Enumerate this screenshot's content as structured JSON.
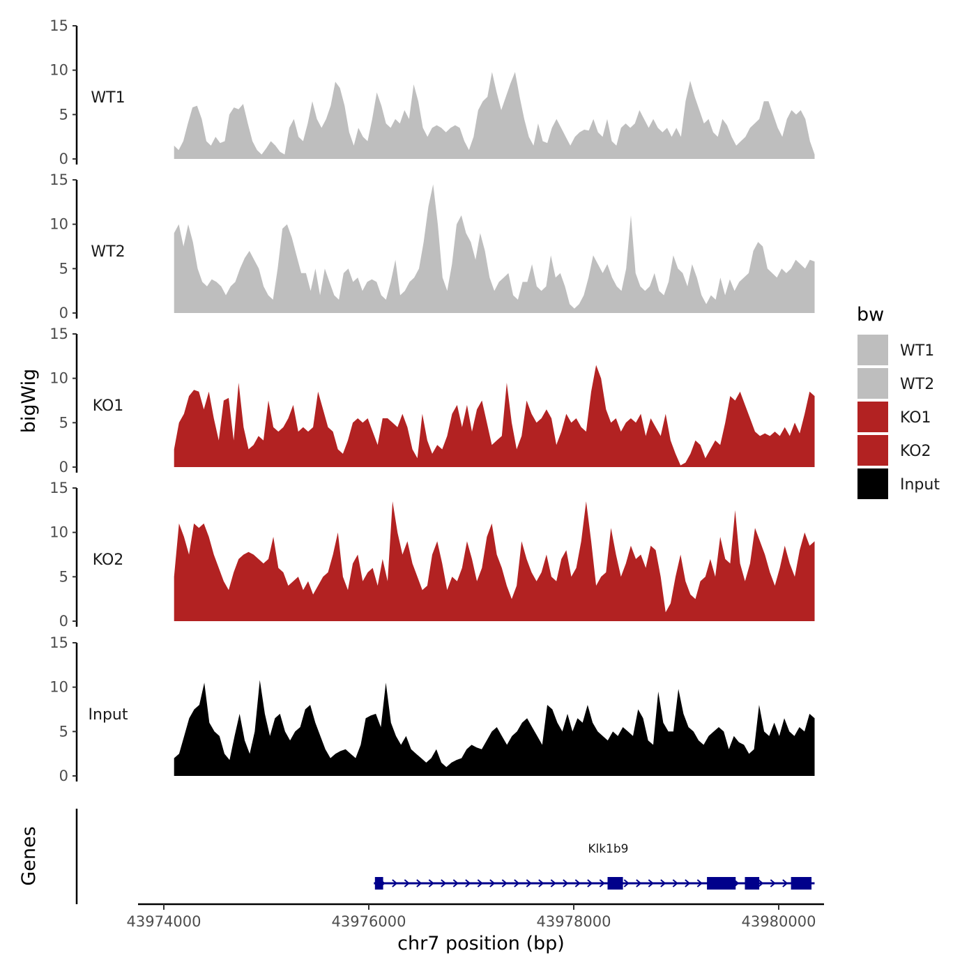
{
  "chart_data": {
    "type": "area",
    "layout": "stacked genome-browser tracks",
    "title": "",
    "ylabel": "bigWig",
    "genes_label": "Genes",
    "xlabel": "chr7 position (bp)",
    "xlim": [
      43973600,
      43980850
    ],
    "ylim": [
      0,
      15
    ],
    "x_ticks": [
      43974000,
      43976000,
      43978000,
      43980000
    ],
    "x_tick_labels": [
      "43974000",
      "43976000",
      "43978000",
      "43980000"
    ],
    "y_ticks": [
      0,
      5,
      10,
      15
    ],
    "y_tick_labels": [
      "0",
      "5",
      "10",
      "15"
    ],
    "x_start": 43974100,
    "x_end": 43980350,
    "legend": {
      "title": "bw",
      "placement": "right",
      "entries": [
        {
          "label": "WT1",
          "color": "#bebebe"
        },
        {
          "label": "WT2",
          "color": "#bebebe"
        },
        {
          "label": "KO1",
          "color": "#b22222"
        },
        {
          "label": "KO2",
          "color": "#b22222"
        },
        {
          "label": "Input",
          "color": "#000000"
        }
      ]
    },
    "series": [
      {
        "name": "WT1",
        "color": "#bebebe",
        "values": [
          1.5,
          1.0,
          2.0,
          4.0,
          5.8,
          6.0,
          4.5,
          2.0,
          1.5,
          2.5,
          1.8,
          2.0,
          5.0,
          5.8,
          5.6,
          6.2,
          4.0,
          2.0,
          1.0,
          0.5,
          1.2,
          2.0,
          1.5,
          0.8,
          0.5,
          3.5,
          4.5,
          2.5,
          2.0,
          4.0,
          6.5,
          4.5,
          3.5,
          4.5,
          6.0,
          8.7,
          8.0,
          6.0,
          3.0,
          1.5,
          3.5,
          2.5,
          2.0,
          4.5,
          7.5,
          6.0,
          4.0,
          3.5,
          4.5,
          4.0,
          5.5,
          4.5,
          8.4,
          6.5,
          3.5,
          2.5,
          3.5,
          3.8,
          3.5,
          3.0,
          3.5,
          3.8,
          3.5,
          2.0,
          1.0,
          2.5,
          5.5,
          6.5,
          7.0,
          9.8,
          7.5,
          5.5,
          7.0,
          8.5,
          9.8,
          7.0,
          4.5,
          2.5,
          1.5,
          4.0,
          2.0,
          1.8,
          3.5,
          4.5,
          3.5,
          2.5,
          1.5,
          2.5,
          3.0,
          3.3,
          3.2,
          4.5,
          3.0,
          2.5,
          4.5,
          2.0,
          1.5,
          3.5,
          4.0,
          3.5,
          4.0,
          5.5,
          4.5,
          3.5,
          4.5,
          3.5,
          3.0,
          3.5,
          2.5,
          3.5,
          2.5,
          6.5,
          8.8,
          7.0,
          5.5,
          4.0,
          4.5,
          3.0,
          2.5,
          4.5,
          3.8,
          2.5,
          1.5,
          2.0,
          2.5,
          3.5,
          4.0,
          4.5,
          6.5,
          6.5,
          5.0,
          3.5,
          2.5,
          4.5,
          5.5,
          5.0,
          5.5,
          4.5,
          2.0,
          0.5
        ]
      },
      {
        "name": "WT2",
        "color": "#bebebe",
        "values": [
          9.0,
          10.0,
          7.5,
          10.0,
          8.0,
          5.0,
          3.5,
          3.0,
          3.8,
          3.5,
          3.0,
          2.0,
          3.0,
          3.5,
          5.0,
          6.2,
          7.0,
          6.0,
          5.0,
          3.0,
          2.0,
          1.5,
          5.0,
          9.5,
          10.0,
          8.5,
          6.5,
          4.5,
          4.5,
          2.5,
          5.0,
          2.0,
          5.0,
          3.5,
          2.0,
          1.5,
          4.5,
          5.0,
          3.5,
          4.0,
          2.5,
          3.5,
          3.8,
          3.5,
          2.0,
          1.5,
          3.5,
          6.0,
          2.0,
          2.5,
          3.5,
          4.0,
          5.0,
          8.0,
          12.0,
          14.5,
          10.0,
          4.0,
          2.5,
          5.5,
          10.0,
          11.0,
          9.0,
          8.0,
          6.0,
          9.0,
          7.0,
          4.0,
          2.5,
          3.5,
          4.0,
          4.5,
          2.0,
          1.5,
          3.5,
          3.5,
          5.5,
          3.0,
          2.5,
          3.0,
          6.5,
          4.0,
          4.5,
          3.0,
          1.0,
          0.5,
          1.0,
          2.0,
          4.0,
          6.5,
          5.5,
          4.5,
          5.5,
          4.0,
          3.0,
          2.5,
          5.0,
          11.0,
          4.5,
          3.0,
          2.5,
          3.0,
          4.5,
          2.5,
          2.0,
          3.5,
          6.5,
          5.0,
          4.5,
          3.0,
          5.5,
          4.0,
          2.0,
          1.0,
          2.0,
          1.5,
          4.0,
          2.0,
          3.8,
          2.5,
          3.5,
          4.0,
          4.5,
          7.0,
          8.0,
          7.5,
          5.0,
          4.5,
          4.0,
          5.0,
          4.5,
          5.0,
          6.0,
          5.5,
          5.0,
          6.0,
          5.8
        ]
      },
      {
        "name": "KO1",
        "color": "#b22222",
        "values": [
          2.0,
          5.0,
          6.0,
          8.0,
          8.7,
          8.5,
          6.5,
          8.5,
          5.5,
          3.0,
          7.5,
          7.8,
          3.0,
          9.5,
          4.5,
          2.0,
          2.5,
          3.5,
          3.0,
          7.5,
          4.5,
          4.0,
          4.5,
          5.5,
          7.0,
          4.0,
          4.5,
          4.0,
          4.5,
          8.5,
          6.5,
          4.5,
          4.0,
          2.0,
          1.5,
          3.0,
          5.0,
          5.5,
          5.0,
          5.5,
          4.0,
          2.5,
          5.5,
          5.5,
          5.0,
          4.5,
          6.0,
          4.5,
          2.0,
          1.0,
          6.0,
          3.0,
          1.5,
          2.5,
          2.0,
          3.5,
          6.0,
          7.0,
          4.5,
          7.0,
          4.0,
          6.5,
          7.5,
          5.0,
          2.5,
          3.0,
          3.5,
          9.5,
          5.0,
          2.0,
          3.5,
          7.5,
          6.0,
          5.0,
          5.5,
          6.5,
          5.5,
          2.5,
          4.0,
          6.0,
          5.0,
          5.5,
          4.5,
          4.0,
          8.5,
          11.5,
          10.0,
          6.5,
          5.0,
          5.5,
          4.0,
          5.0,
          5.5,
          5.0,
          6.0,
          3.5,
          5.5,
          4.5,
          3.5,
          6.0,
          3.0,
          1.5,
          0.2,
          0.5,
          1.5,
          3.0,
          2.5,
          1.0,
          2.0,
          3.0,
          2.5,
          5.0,
          8.0,
          7.5,
          8.5,
          7.0,
          5.5,
          4.0,
          3.5,
          3.8,
          3.5,
          4.0,
          3.5,
          4.5,
          3.5,
          5.0,
          3.8,
          6.0,
          8.5,
          8.0
        ]
      },
      {
        "name": "KO2",
        "color": "#b22222",
        "values": [
          5.0,
          11.0,
          9.5,
          7.5,
          11.0,
          10.5,
          11.0,
          9.5,
          7.5,
          6.0,
          4.5,
          3.5,
          5.5,
          7.0,
          7.5,
          7.8,
          7.5,
          7.0,
          6.5,
          7.0,
          9.5,
          6.0,
          5.5,
          4.0,
          4.5,
          5.0,
          3.5,
          4.5,
          3.0,
          4.0,
          5.0,
          5.5,
          7.5,
          10.0,
          5.0,
          3.5,
          6.5,
          7.5,
          4.5,
          5.5,
          6.0,
          4.0,
          7.0,
          4.5,
          13.5,
          10.0,
          7.5,
          9.0,
          6.5,
          5.0,
          3.5,
          4.0,
          7.5,
          9.0,
          6.5,
          3.5,
          5.0,
          4.5,
          6.0,
          9.0,
          7.0,
          4.5,
          6.0,
          9.5,
          11.0,
          7.5,
          6.0,
          4.0,
          2.5,
          4.0,
          9.0,
          7.0,
          5.5,
          4.5,
          5.5,
          7.5,
          5.0,
          4.5,
          7.0,
          8.0,
          5.0,
          6.0,
          9.0,
          13.5,
          9.0,
          4.0,
          5.0,
          5.5,
          10.5,
          7.5,
          5.0,
          6.5,
          8.5,
          7.0,
          7.5,
          6.0,
          8.5,
          8.0,
          5.0,
          1.0,
          2.0,
          5.0,
          7.5,
          4.5,
          3.0,
          2.5,
          4.5,
          5.0,
          7.0,
          5.0,
          9.5,
          7.0,
          6.5,
          12.5,
          6.5,
          4.5,
          6.5,
          10.5,
          9.0,
          7.5,
          5.5,
          4.0,
          6.0,
          8.5,
          6.5,
          5.0,
          8.0,
          10.0,
          8.5,
          9.0
        ]
      },
      {
        "name": "Input",
        "color": "#000000",
        "values": [
          2.0,
          2.5,
          4.5,
          6.5,
          7.5,
          8.0,
          10.5,
          6.0,
          5.0,
          4.5,
          2.5,
          1.8,
          4.5,
          7.0,
          4.0,
          2.5,
          5.0,
          10.8,
          7.0,
          4.5,
          6.5,
          7.0,
          5.0,
          4.0,
          5.0,
          5.5,
          7.5,
          8.0,
          6.0,
          4.5,
          3.0,
          2.0,
          2.5,
          2.8,
          3.0,
          2.5,
          2.0,
          3.5,
          6.5,
          6.8,
          7.0,
          5.5,
          10.5,
          6.0,
          4.5,
          3.5,
          4.5,
          3.0,
          2.5,
          2.0,
          1.5,
          2.0,
          3.0,
          1.5,
          1.0,
          1.5,
          1.8,
          2.0,
          3.0,
          3.5,
          3.2,
          3.0,
          4.0,
          5.0,
          5.5,
          4.5,
          3.5,
          4.5,
          5.0,
          6.0,
          6.5,
          5.5,
          4.5,
          3.5,
          8.0,
          7.5,
          6.0,
          5.0,
          7.0,
          5.0,
          6.5,
          6.0,
          8.0,
          6.0,
          5.0,
          4.5,
          4.0,
          5.0,
          4.5,
          5.5,
          5.0,
          4.5,
          7.5,
          6.5,
          4.0,
          3.5,
          9.5,
          6.0,
          5.0,
          5.0,
          9.8,
          7.0,
          5.5,
          5.0,
          4.0,
          3.5,
          4.5,
          5.0,
          5.5,
          5.0,
          3.0,
          4.5,
          3.8,
          3.5,
          2.5,
          3.0,
          8.0,
          5.0,
          4.5,
          6.0,
          4.5,
          6.5,
          5.0,
          4.5,
          5.5,
          5.0,
          7.0,
          6.5
        ]
      }
    ],
    "genes": [
      {
        "name": "Klk1b9",
        "strand": "+",
        "start": 43976050,
        "end": 43980350,
        "exons": [
          [
            43976060,
            43976140
          ],
          [
            43978330,
            43978480
          ],
          [
            43979300,
            43979580
          ],
          [
            43979670,
            43979810
          ],
          [
            43980120,
            43980320
          ]
        ],
        "color": "#00008b"
      }
    ]
  }
}
